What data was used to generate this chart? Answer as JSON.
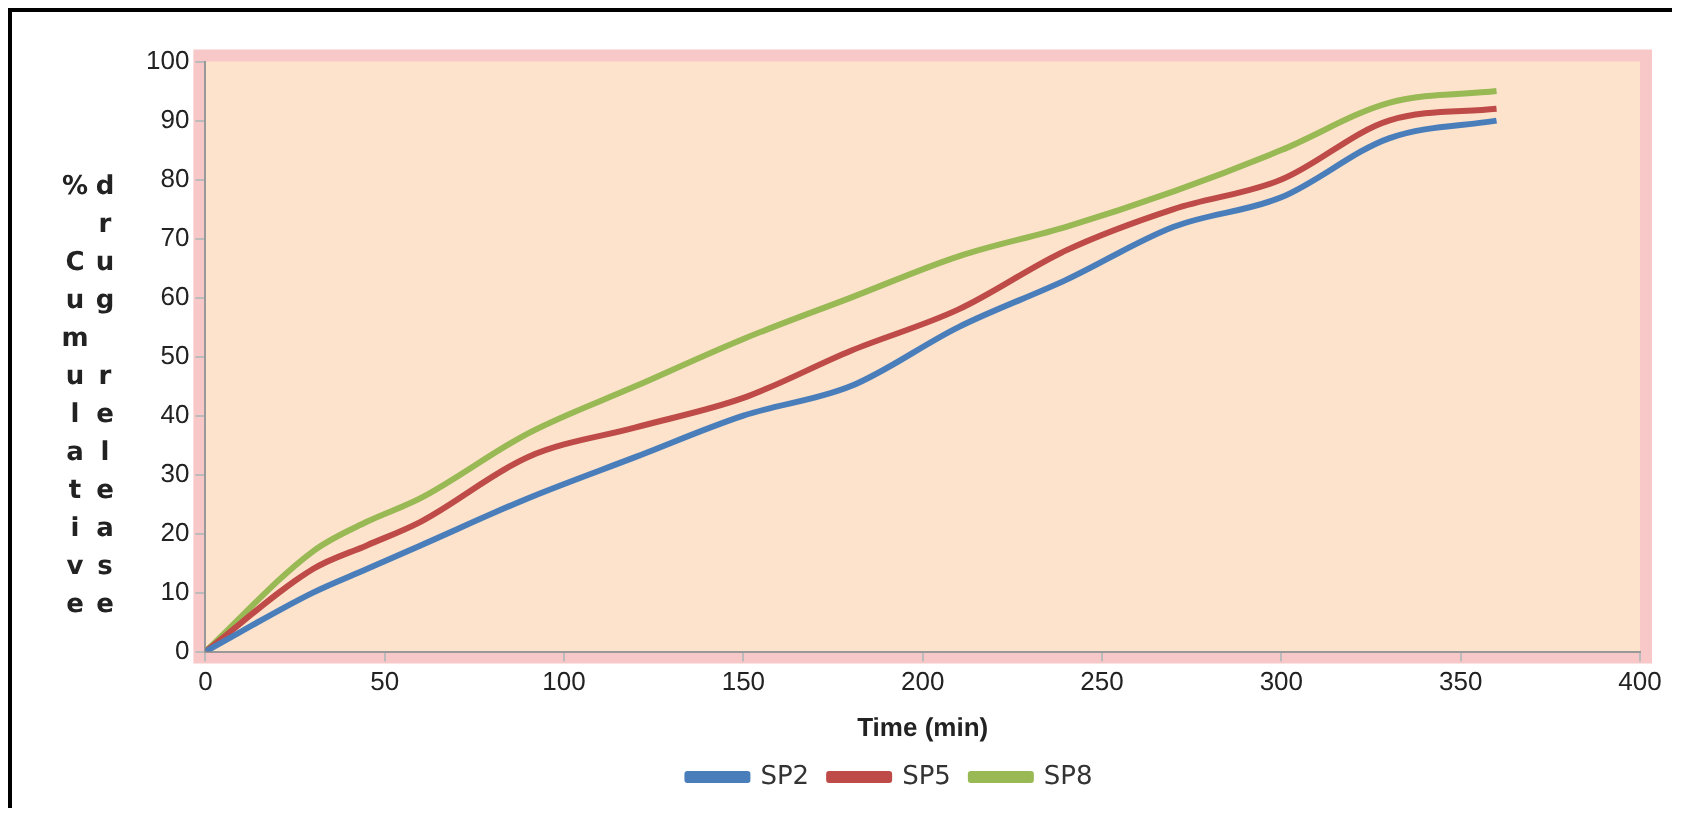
{
  "chart_data": {
    "type": "line",
    "xlabel": "Time (min)",
    "ylabel": "% Cumulative drug release",
    "x": [
      0,
      30,
      45,
      60,
      90,
      120,
      150,
      180,
      210,
      240,
      270,
      300,
      330,
      360
    ],
    "series": [
      {
        "name": "SP2",
        "color": "#4a7ebb",
        "values": [
          0,
          10,
          14,
          18,
          26,
          33,
          40,
          45,
          55,
          63,
          72,
          77,
          87,
          90
        ]
      },
      {
        "name": "SP5",
        "color": "#be4b48",
        "values": [
          0,
          14,
          18,
          22,
          33,
          38,
          43,
          51,
          58,
          68,
          75,
          80,
          90,
          92
        ]
      },
      {
        "name": "SP8",
        "color": "#98b954",
        "values": [
          0,
          17,
          22,
          26,
          37,
          45,
          53,
          60,
          67,
          72,
          78,
          85,
          93,
          95
        ]
      }
    ],
    "xlim": [
      0,
      400
    ],
    "xticks": [
      0,
      50,
      100,
      150,
      200,
      250,
      300,
      350,
      400
    ],
    "ylim": [
      0,
      100
    ],
    "yticks": [
      0,
      10,
      20,
      30,
      40,
      50,
      60,
      70,
      80,
      90,
      100
    ],
    "grid": false,
    "legend": "bottom",
    "marker": "none",
    "line_style": "solid"
  }
}
